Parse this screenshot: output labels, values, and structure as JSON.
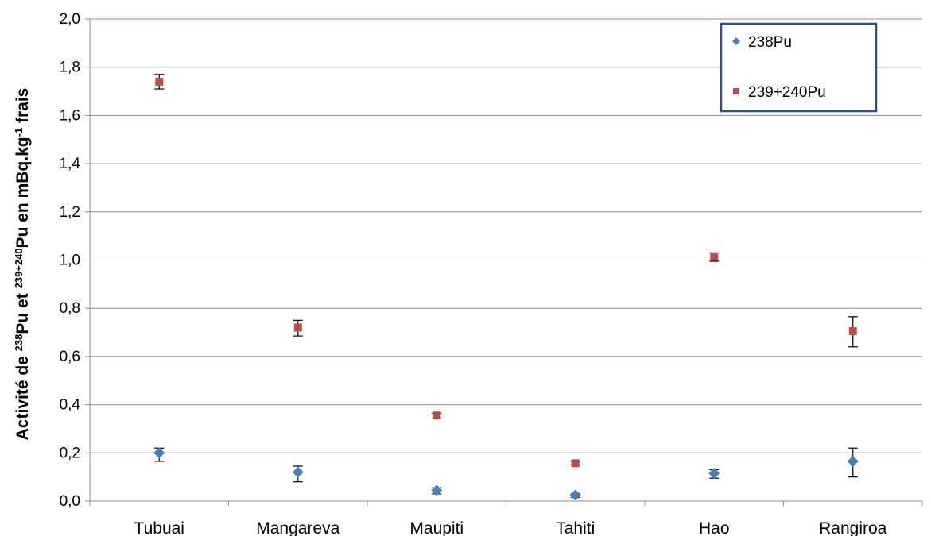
{
  "chart_data": {
    "type": "scatter",
    "categories": [
      "Tubuai",
      "Mangareva",
      "Maupiti",
      "Tahiti",
      "Hao",
      "Rangiroa"
    ],
    "series": [
      {
        "name": "238Pu",
        "color": "#4a7ebb",
        "marker": "diamond",
        "values": [
          0.2,
          0.12,
          0.045,
          0.025,
          0.115,
          0.165
        ],
        "err_low": [
          0.165,
          0.08,
          0.03,
          0.015,
          0.095,
          0.1
        ],
        "err_high": [
          0.22,
          0.145,
          0.055,
          0.03,
          0.13,
          0.22
        ]
      },
      {
        "name": "239+240Pu",
        "color": "#be4b48",
        "marker": "square",
        "values": [
          1.74,
          0.72,
          0.355,
          0.157,
          1.013,
          0.705
        ],
        "err_low": [
          1.71,
          0.685,
          0.345,
          0.15,
          0.995,
          0.64
        ],
        "err_high": [
          1.77,
          0.75,
          0.365,
          0.165,
          1.03,
          0.765
        ]
      }
    ],
    "ylabel_parts": [
      {
        "t": "Activité de ",
        "sup": false
      },
      {
        "t": "238",
        "sup": true
      },
      {
        "t": "Pu  et  ",
        "sup": false
      },
      {
        "t": "239+240",
        "sup": true
      },
      {
        "t": "Pu  en mBq.kg",
        "sup": false
      },
      {
        "t": "-1",
        "sup": true
      },
      {
        "t": " frais",
        "sup": false
      }
    ],
    "ylim": [
      0,
      2.0
    ],
    "yticks": [
      "0,0",
      "0,2",
      "0,4",
      "0,6",
      "0,8",
      "1,0",
      "1,2",
      "1,4",
      "1,6",
      "1,8",
      "2,0"
    ],
    "grid": true,
    "legend_position": "top-right"
  }
}
